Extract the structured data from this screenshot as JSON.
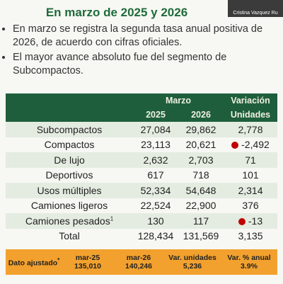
{
  "header": {
    "title": "En marzo de 2025 y 2026",
    "video_caption": "Cristina Vazquez Ru"
  },
  "bullets": [
    "En marzo se registra la segunda tasa anual positiva de 2026, de acuerdo con cifras oficiales.",
    "El mayor avance absoluto fue del segmento de Subcompactos."
  ],
  "table": {
    "group_header": "Marzo",
    "columns": [
      "2025",
      "2026"
    ],
    "variation_header": "Variación",
    "variation_sub": "Unidades",
    "rows": [
      {
        "label": "Subcompactos",
        "y2025": "27,084",
        "y2026": "29,862",
        "var": "2,778"
      },
      {
        "label": "Compactos",
        "y2025": "23,113",
        "y2026": "20,621",
        "var": "-2,492"
      },
      {
        "label": "De lujo",
        "y2025": "2,632",
        "y2026": "2,703",
        "var": "71"
      },
      {
        "label": "Deportivos",
        "y2025": "617",
        "y2026": "718",
        "var": "101"
      },
      {
        "label": "Usos múltiples",
        "y2025": "52,334",
        "y2026": "54,648",
        "var": "2,314"
      },
      {
        "label": "Camiones ligeros",
        "y2025": "22,524",
        "y2026": "22,900",
        "var": "376"
      },
      {
        "label": "Camiones pesados",
        "footnote": "1",
        "y2025": "130",
        "y2026": "117",
        "var": "-13"
      },
      {
        "label": "Total",
        "y2025": "128,434",
        "y2026": "131,569",
        "var": "3,135"
      }
    ]
  },
  "footer": {
    "label": "Dato ajustado",
    "label_mark": "*",
    "items": [
      {
        "label": "mar-25",
        "value": "135,010"
      },
      {
        "label": "mar-26",
        "value": "140,246"
      },
      {
        "label": "Var. unidades",
        "value": "5,236"
      },
      {
        "label": "Var. % anual",
        "value": "3.9%"
      }
    ]
  }
}
